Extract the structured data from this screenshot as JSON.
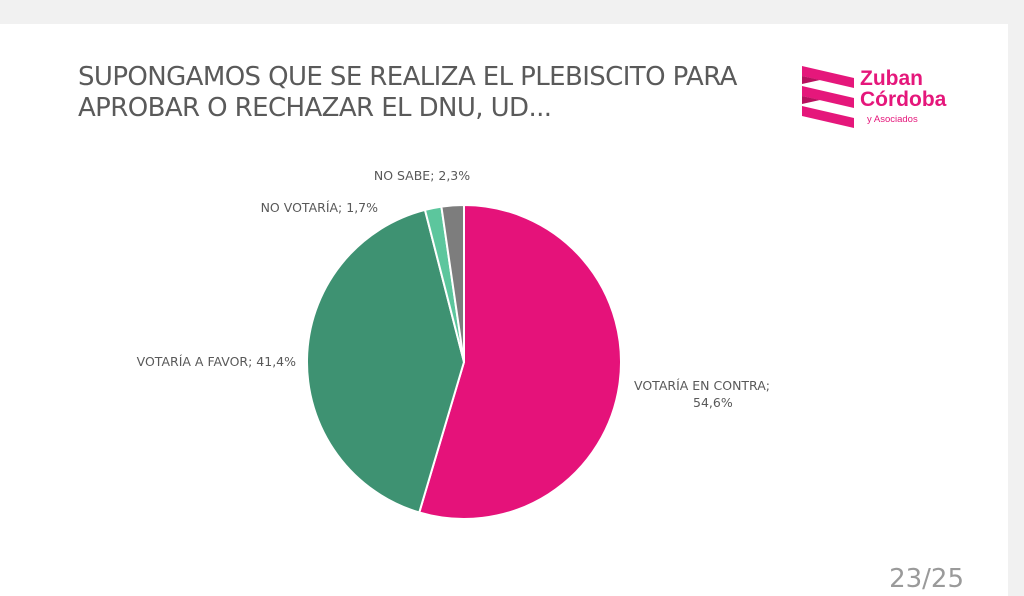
{
  "slide": {
    "title_line1": "SUPONGAMOS QUE SE REALIZA EL PLEBISCITO PARA",
    "title_line2": "APROBAR O RECHAZAR EL DNU, UD...",
    "page_indicator": "23/25"
  },
  "logo": {
    "name_line1": "Zuban",
    "name_line2": "Córdoba",
    "tagline": "y Asociados",
    "color": "#e5177b"
  },
  "chart_data": {
    "type": "pie",
    "title": "SUPONGAMOS QUE SE REALIZA EL PLEBISCITO PARA APROBAR O RECHAZAR EL DNU, UD...",
    "slices": [
      {
        "name": "VOTARÍA EN CONTRA",
        "value": 54.6,
        "label": [
          "VOTARÍA EN CONTRA;",
          "54,6%"
        ],
        "color": "#e5127a"
      },
      {
        "name": "VOTARÍA A FAVOR",
        "value": 41.4,
        "label": [
          "VOTARÍA A FAVOR; 41,4%"
        ],
        "color": "#3e9272"
      },
      {
        "name": "NO VOTARÍA",
        "value": 1.7,
        "label": [
          "NO VOTARÍA; 1,7%"
        ],
        "color": "#5cc69d"
      },
      {
        "name": "NO SABE",
        "value": 2.3,
        "label": [
          "NO SABE; 2,3%"
        ],
        "color": "#7d7d7d"
      }
    ]
  }
}
